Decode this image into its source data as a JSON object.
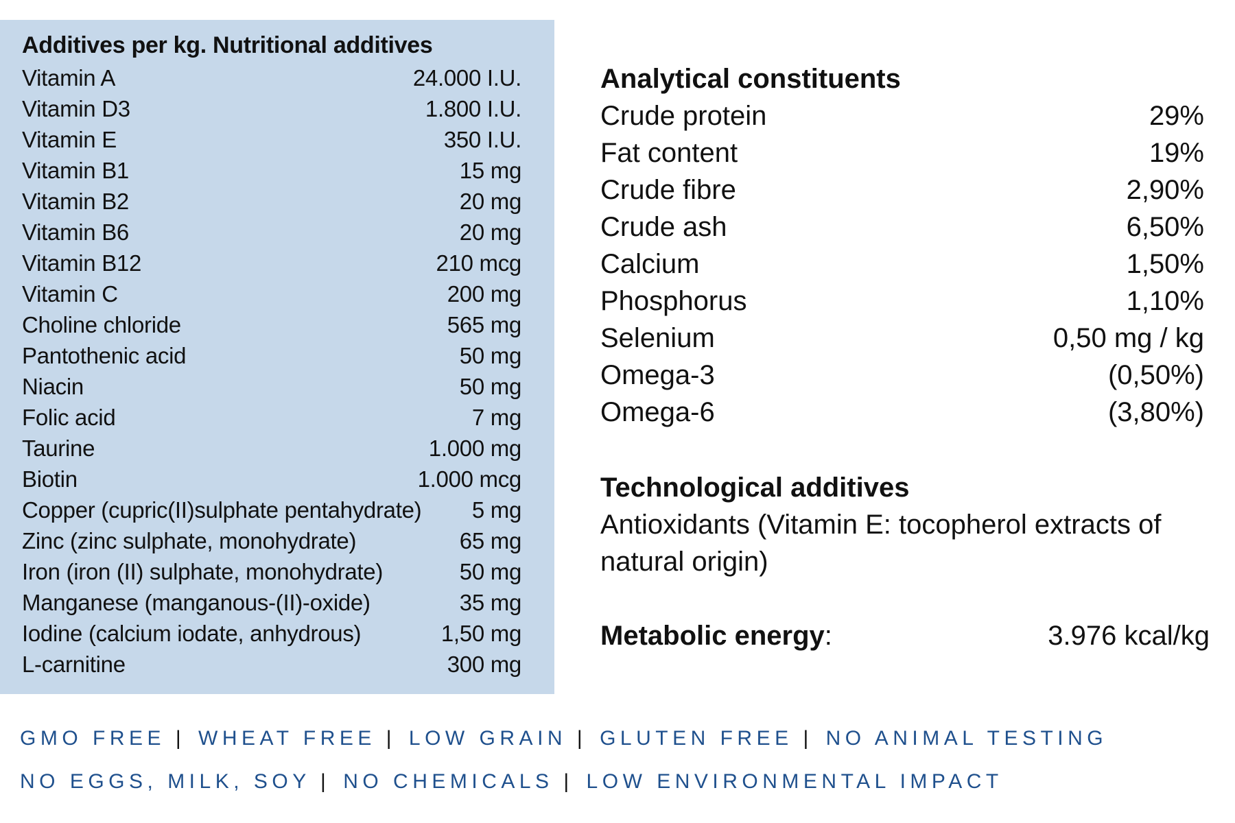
{
  "nutritional": {
    "title": "Additives per kg. Nutritional additives",
    "rows": [
      {
        "name": "Vitamin A",
        "value": "24.000 I.U."
      },
      {
        "name": "Vitamin D3",
        "value": "1.800 I.U."
      },
      {
        "name": "Vitamin E",
        "value": "350 I.U."
      },
      {
        "name": "Vitamin B1",
        "value": "15 mg"
      },
      {
        "name": "Vitamin B2",
        "value": "20 mg"
      },
      {
        "name": "Vitamin B6",
        "value": "20 mg"
      },
      {
        "name": "Vitamin B12",
        "value": "210 mcg"
      },
      {
        "name": "Vitamin C",
        "value": "200 mg"
      },
      {
        "name": "Choline chloride",
        "value": "565 mg"
      },
      {
        "name": "Pantothenic acid",
        "value": "50 mg"
      },
      {
        "name": "Niacin",
        "value": "50 mg"
      },
      {
        "name": "Folic acid",
        "value": "7 mg"
      },
      {
        "name": "Taurine",
        "value": "1.000 mg"
      },
      {
        "name": "Biotin",
        "value": "1.000 mcg"
      },
      {
        "name": "Copper (cupric(II)sulphate pentahydrate)",
        "value": "5 mg"
      },
      {
        "name": "Zinc (zinc sulphate, monohydrate)",
        "value": "65 mg"
      },
      {
        "name": "Iron (iron (II) sulphate, monohydrate)",
        "value": "50 mg"
      },
      {
        "name": "Manganese (manganous-(II)-oxide)",
        "value": "35 mg"
      },
      {
        "name": "Iodine (calcium iodate, anhydrous)",
        "value": "1,50 mg"
      },
      {
        "name": "L-carnitine",
        "value": "300 mg"
      }
    ]
  },
  "analytical": {
    "title": "Analytical constituents",
    "rows": [
      {
        "name": "Crude protein",
        "value": "29%"
      },
      {
        "name": "Fat content",
        "value": "19%"
      },
      {
        "name": "Crude fibre",
        "value": "2,90%"
      },
      {
        "name": "Crude ash",
        "value": "6,50%"
      },
      {
        "name": "Calcium",
        "value": "1,50%"
      },
      {
        "name": "Phosphorus",
        "value": "1,10%"
      },
      {
        "name": "Selenium",
        "value": "0,50 mg / kg"
      },
      {
        "name": "Omega-3",
        "value": "(0,50%)"
      },
      {
        "name": "Omega-6",
        "value": "(3,80%)"
      }
    ]
  },
  "technological": {
    "title": "Technological additives",
    "text": "Antioxidants (Vitamin E: tocopherol extracts of natural origin)"
  },
  "energy": {
    "label": "Metabolic energy",
    "colon": ":",
    "value": "3.976 kcal/kg"
  },
  "claims": {
    "separator": "|",
    "line1": [
      "GMO FREE",
      "WHEAT FREE",
      "LOW GRAIN",
      "GLUTEN FREE",
      "NO ANIMAL TESTING"
    ],
    "line2": [
      "NO EGGS, MILK, SOY",
      "NO CHEMICALS",
      "LOW ENVIRONMENTAL IMPACT"
    ]
  },
  "colors": {
    "panel": "#c6d8ea",
    "claims": "#1f508d"
  }
}
